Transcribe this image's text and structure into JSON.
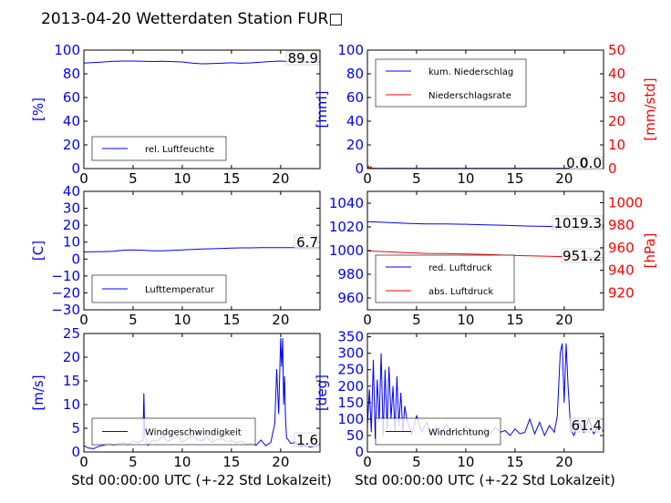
{
  "title": "2013-04-20 Wetterdaten Station FUR□",
  "xlabel": "Std 00:00:00 UTC (+-22 Std Lokalzeit)",
  "colors": {
    "primary": "#0000ff",
    "secondary": "#ff0000",
    "axis": "#000000"
  },
  "chart_data": [
    {
      "type": "line",
      "panel": "top-left",
      "ylabel": "[%]",
      "ylim": [
        0,
        100
      ],
      "yticks": [
        "0",
        "20",
        "40",
        "60",
        "80",
        "100"
      ],
      "xlim": [
        0,
        24
      ],
      "xticks": [
        "0",
        "5",
        "10",
        "15",
        "20"
      ],
      "last_value": "89.9",
      "legend_placement": "lower-left",
      "series": [
        {
          "name": "rel. Luftfeuchte",
          "color": "#0000ff",
          "x": [
            0,
            1,
            2,
            3,
            4,
            5,
            6,
            7,
            8,
            9,
            10,
            11,
            12,
            13,
            14,
            15,
            16,
            17,
            18,
            19,
            20,
            21,
            22,
            23,
            24
          ],
          "y": [
            89,
            89.5,
            90,
            90.5,
            90.8,
            90.8,
            90.5,
            90.4,
            90.5,
            90.3,
            90,
            89,
            88.5,
            88.6,
            88.9,
            89.3,
            88.9,
            89.2,
            89.8,
            90.4,
            90.8,
            90.3,
            90,
            89.9,
            89.9
          ]
        }
      ]
    },
    {
      "type": "line",
      "panel": "top-right",
      "ylabel": "[mm]",
      "ylabel_right": "[mm/std]",
      "ylim": [
        0,
        100
      ],
      "ylim_right": [
        0,
        50
      ],
      "yticks": [
        "0",
        "20",
        "40",
        "60",
        "80",
        "100"
      ],
      "yticks_right": [
        "0",
        "10",
        "20",
        "30",
        "40",
        "50"
      ],
      "xlim": [
        0,
        24
      ],
      "xticks": [
        "0",
        "5",
        "10",
        "15",
        "20"
      ],
      "last_value": "0.0",
      "last_value_right": "0.0",
      "legend_placement": "upper-left",
      "series": [
        {
          "name": "kum. Niederschlag",
          "color": "#0000ff",
          "x": [
            0,
            4,
            8,
            12,
            16,
            20,
            24
          ],
          "y": [
            0.2,
            0.2,
            0.2,
            0.2,
            0.2,
            0.2,
            0.2
          ]
        },
        {
          "name": "Niederschlagsrate",
          "color": "#ff0000",
          "x": [
            0,
            0.1,
            0.2,
            0.35,
            0.5,
            1,
            4,
            8,
            12,
            16,
            20,
            24
          ],
          "y": [
            0,
            1,
            0.3,
            0.8,
            0.1,
            0,
            0,
            0,
            0,
            0,
            0,
            0
          ]
        }
      ]
    },
    {
      "type": "line",
      "panel": "middle-left",
      "ylabel": "[C]",
      "ylim": [
        -30,
        40
      ],
      "yticks": [
        "−30",
        "−20",
        "−10",
        "0",
        "10",
        "20",
        "30",
        "40"
      ],
      "xlim": [
        0,
        24
      ],
      "xticks": [
        "0",
        "5",
        "10",
        "15",
        "20"
      ],
      "last_value": "6.7",
      "legend_placement": "lower-left",
      "series": [
        {
          "name": "Lufttemperatur",
          "color": "#0000ff",
          "x": [
            0,
            1,
            2,
            3,
            4,
            5,
            6,
            7,
            8,
            9,
            10,
            11,
            12,
            13,
            14,
            15,
            16,
            17,
            18,
            19,
            20,
            21,
            22,
            23,
            24
          ],
          "y": [
            4.2,
            4.3,
            4.4,
            4.6,
            5.2,
            5.4,
            5.2,
            4.9,
            4.9,
            5.1,
            5.4,
            5.7,
            5.9,
            6.1,
            6.3,
            6.5,
            6.6,
            6.6,
            6.7,
            6.8,
            6.8,
            6.7,
            6.8,
            6.7,
            6.7
          ]
        }
      ]
    },
    {
      "type": "line",
      "panel": "middle-right",
      "ylabel_right": "[hPa]",
      "ylim": [
        950,
        1050
      ],
      "ylim_right": [
        905,
        1010
      ],
      "yticks": [
        "960",
        "980",
        "1000",
        "1020",
        "1040"
      ],
      "yticks_right": [
        "920",
        "940",
        "960",
        "980",
        "1000"
      ],
      "xlim": [
        0,
        24
      ],
      "xticks": [
        "0",
        "5",
        "10",
        "15",
        "20"
      ],
      "last_value": "1019.3",
      "last_value_right": "951.2",
      "legend_placement": "lower-left",
      "series": [
        {
          "name": "red. Luftdruck",
          "color": "#0000ff",
          "x": [
            0,
            2,
            4,
            6,
            8,
            10,
            12,
            14,
            16,
            18,
            20,
            22,
            24
          ],
          "y": [
            1024.5,
            1023.8,
            1023,
            1022.5,
            1022.5,
            1022.2,
            1021.8,
            1021.3,
            1020.8,
            1020.5,
            1020,
            1019.6,
            1019.3
          ]
        },
        {
          "name": "abs. Luftdruck",
          "color": "#ff0000",
          "x": [
            0,
            2,
            4,
            6,
            8,
            10,
            12,
            14,
            16,
            18,
            20,
            22,
            24
          ],
          "y": [
            957.2,
            956.5,
            955.7,
            955,
            954.8,
            954.4,
            954,
            953.4,
            953,
            952.6,
            952.2,
            951.6,
            951.2
          ]
        }
      ]
    },
    {
      "type": "line",
      "panel": "bottom-left",
      "ylabel": "[m/s]",
      "ylim": [
        0,
        25
      ],
      "yticks": [
        "0",
        "5",
        "10",
        "15",
        "20",
        "25"
      ],
      "xlim": [
        0,
        24
      ],
      "xticks": [
        "0",
        "5",
        "10",
        "15",
        "20"
      ],
      "last_value": "1.6",
      "legend_placement": "lower-left",
      "series": [
        {
          "name": "Windgeschwindigkeit",
          "color": "#0000ff",
          "x": [
            0,
            0.5,
            1,
            1.5,
            2,
            2.5,
            3,
            3.5,
            4,
            4.5,
            5,
            5.5,
            6,
            6.1,
            6.2,
            6.3,
            6.5,
            7,
            7.5,
            8,
            8.5,
            9,
            9.5,
            10,
            10.5,
            11,
            11.5,
            12,
            12.5,
            13,
            13.5,
            14,
            14.5,
            15,
            15.5,
            16,
            16.5,
            17,
            17.5,
            18,
            18.5,
            19,
            19.2,
            19.4,
            19.6,
            19.8,
            20,
            20.1,
            20.2,
            20.3,
            20.4,
            20.5,
            20.6,
            20.8,
            21,
            21.5,
            22,
            22.5,
            23,
            23.5,
            24
          ],
          "y": [
            1.3,
            0.8,
            0.7,
            1.2,
            1.4,
            1.8,
            1.5,
            1.7,
            2,
            1.6,
            2.3,
            2,
            2.5,
            12.4,
            3,
            2.8,
            1.4,
            2.5,
            2.3,
            3.3,
            2.2,
            2.8,
            3.4,
            2.1,
            2.7,
            3.5,
            2.6,
            2.3,
            3.2,
            2,
            2.6,
            2.8,
            2.2,
            2.4,
            1.9,
            2.3,
            1.6,
            1.8,
            1.4,
            2.5,
            1.3,
            2,
            4,
            6,
            17.5,
            8,
            24,
            18,
            24,
            10,
            16,
            7,
            3,
            2.5,
            1.8,
            2,
            1.2,
            1.5,
            1,
            1.3,
            1.6
          ]
        }
      ]
    },
    {
      "type": "line",
      "panel": "bottom-right",
      "ylabel": "[deg]",
      "ylim": [
        0,
        360
      ],
      "yticks": [
        "0",
        "50",
        "100",
        "150",
        "200",
        "250",
        "300",
        "350"
      ],
      "xlim": [
        0,
        24
      ],
      "xticks": [
        "0",
        "5",
        "10",
        "15",
        "20"
      ],
      "last_value": "61.4",
      "legend_placement": "lower-left",
      "series": [
        {
          "name": "Windrichtung",
          "color": "#0000ff",
          "x": [
            0,
            0.2,
            0.4,
            0.6,
            0.8,
            1,
            1.2,
            1.4,
            1.6,
            1.8,
            2,
            2.2,
            2.4,
            2.6,
            2.8,
            3,
            3.2,
            3.4,
            3.6,
            3.8,
            4,
            4.5,
            5,
            5.5,
            6,
            6.5,
            7,
            7.5,
            8,
            8.5,
            9,
            9.5,
            10,
            10.5,
            11,
            11.5,
            12,
            12.5,
            13,
            13.5,
            14,
            14.5,
            15,
            15.5,
            16,
            16.5,
            17,
            17.5,
            18,
            18.5,
            19,
            19.3,
            19.6,
            19.8,
            20,
            20.2,
            20.4,
            20.6,
            20.8,
            21,
            21.5,
            22,
            22.5,
            23,
            23.5,
            24
          ],
          "y": [
            80,
            190,
            60,
            280,
            40,
            220,
            90,
            300,
            50,
            250,
            70,
            260,
            100,
            200,
            60,
            230,
            80,
            180,
            60,
            140,
            100,
            55,
            110,
            60,
            90,
            55,
            75,
            50,
            85,
            60,
            70,
            55,
            80,
            60,
            65,
            50,
            70,
            55,
            75,
            60,
            65,
            50,
            70,
            55,
            60,
            100,
            55,
            90,
            50,
            80,
            60,
            110,
            300,
            330,
            150,
            330,
            200,
            100,
            60,
            50,
            90,
            60,
            100,
            55,
            80,
            61.4
          ]
        }
      ]
    }
  ]
}
